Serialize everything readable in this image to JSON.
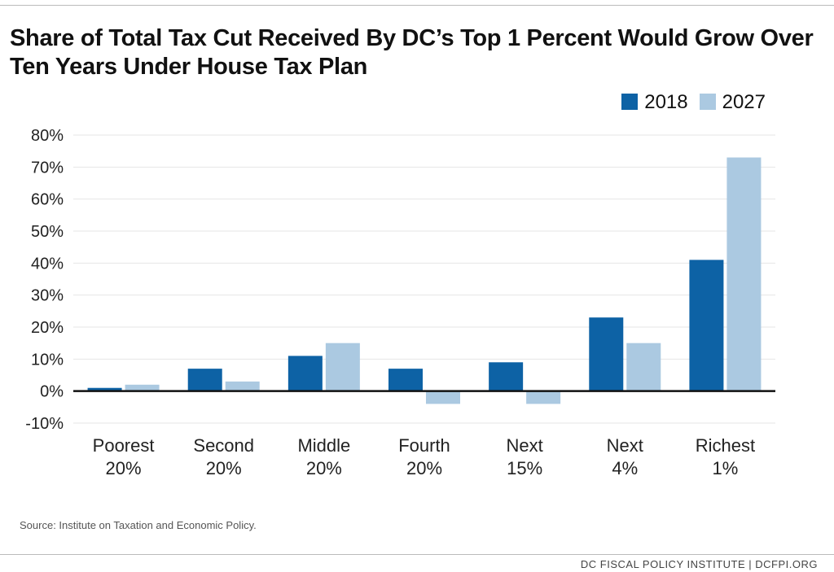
{
  "chart_data": {
    "type": "bar",
    "title": "Share of Total Tax Cut Received By DC’s Top 1 Percent Would Grow Over Ten Years Under House Tax Plan",
    "categories": [
      [
        "Poorest",
        "20%"
      ],
      [
        "Second",
        "20%"
      ],
      [
        "Middle",
        "20%"
      ],
      [
        "Fourth",
        "20%"
      ],
      [
        "Next",
        "15%"
      ],
      [
        "Next",
        "4%"
      ],
      [
        "Richest",
        "1%"
      ]
    ],
    "series": [
      {
        "name": "2018",
        "color": "#0d62a5",
        "values": [
          1,
          7,
          11,
          7,
          9,
          23,
          41
        ]
      },
      {
        "name": "2027",
        "color": "#abc9e1",
        "values": [
          2,
          3,
          15,
          -4,
          -4,
          15,
          73
        ]
      }
    ],
    "ylim": [
      -10,
      80
    ],
    "yticks": [
      -10,
      0,
      10,
      20,
      30,
      40,
      50,
      60,
      70,
      80
    ],
    "ytick_format": "%",
    "grid": true,
    "legend": "top-right",
    "xlabel": "",
    "ylabel": ""
  },
  "source": "Source: Institute on Taxation and Economic Policy.",
  "footer": "DC FISCAL POLICY INSTITUTE | DCFPI.ORG"
}
